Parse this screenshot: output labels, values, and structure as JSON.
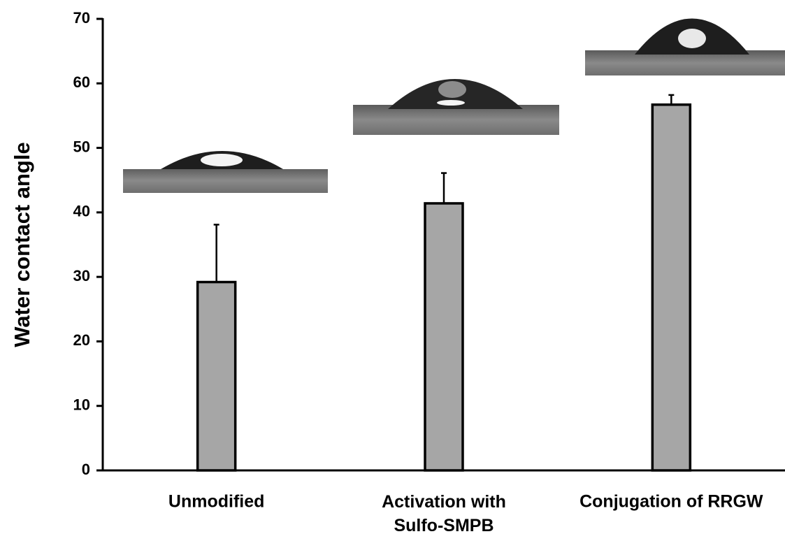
{
  "chart_data": {
    "type": "bar",
    "y_label": "Water contact angle",
    "categories": [
      "Unmodified",
      "Activation with Sulfo-SMPB",
      "Conjugation of RRGW"
    ],
    "values": [
      29.2,
      41.4,
      56.7
    ],
    "errors": [
      8.9,
      4.7,
      1.5
    ],
    "color": "#a6a6a6",
    "ylim": [
      0,
      70
    ],
    "yticks": [
      0,
      10,
      20,
      30,
      40,
      50,
      60,
      70
    ],
    "grid": false
  }
}
